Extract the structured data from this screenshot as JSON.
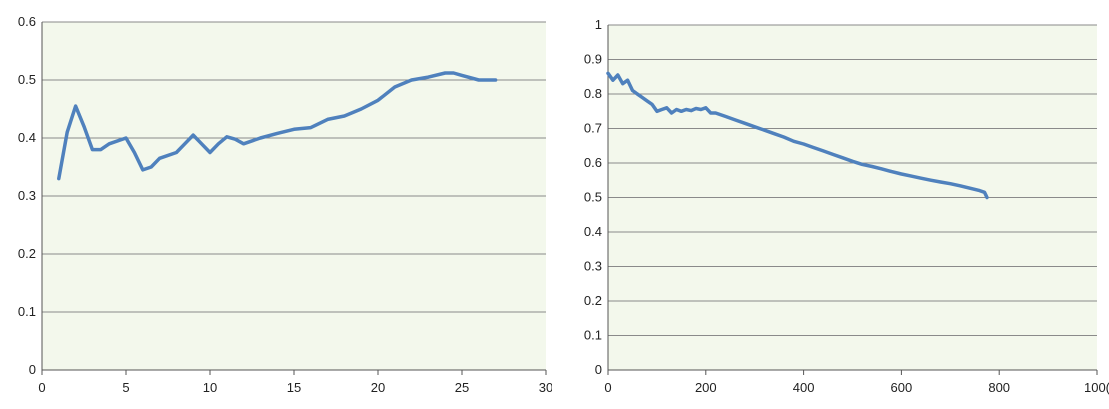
{
  "chart_data": [
    {
      "type": "line",
      "title": "",
      "xlabel": "",
      "ylabel": "",
      "xlim": [
        0,
        30
      ],
      "ylim": [
        0,
        0.6
      ],
      "grid": "horizontal",
      "legend": "none",
      "x_ticks": [
        "0",
        "5",
        "10",
        "15",
        "20",
        "25",
        "30"
      ],
      "y_ticks": [
        "0",
        "0.1",
        "0.2",
        "0.3",
        "0.4",
        "0.5",
        "0.6"
      ],
      "colors": {
        "line": "#4f81bd",
        "plot_bg": "#f3f8ec",
        "grid": "#8a8a8a"
      },
      "series": [
        {
          "x": [
            1,
            1.5,
            2,
            2.5,
            3,
            3.5,
            4,
            5,
            5.5,
            6,
            6.5,
            7,
            8,
            8.5,
            9,
            9.5,
            10,
            10.5,
            11,
            11.5,
            12,
            13,
            14,
            15,
            16,
            17,
            18,
            19,
            20,
            21,
            22,
            23,
            24,
            24.5,
            25,
            26,
            27
          ],
          "y": [
            0.33,
            0.41,
            0.455,
            0.42,
            0.38,
            0.38,
            0.39,
            0.4,
            0.375,
            0.345,
            0.35,
            0.365,
            0.375,
            0.39,
            0.405,
            0.39,
            0.375,
            0.39,
            0.402,
            0.398,
            0.39,
            0.4,
            0.408,
            0.415,
            0.418,
            0.432,
            0.438,
            0.45,
            0.465,
            0.488,
            0.5,
            0.505,
            0.512,
            0.512,
            0.508,
            0.5,
            0.5
          ]
        }
      ]
    },
    {
      "type": "line",
      "title": "",
      "xlabel": "",
      "ylabel": "",
      "xlim": [
        0,
        1000
      ],
      "ylim": [
        0,
        1
      ],
      "grid": "horizontal",
      "legend": "none",
      "x_ticks": [
        "0",
        "200",
        "400",
        "600",
        "800",
        "100("
      ],
      "y_ticks": [
        "0",
        "0.1",
        "0.2",
        "0.3",
        "0.4",
        "0.5",
        "0.6",
        "0.7",
        "0.8",
        "0.9",
        "1"
      ],
      "colors": {
        "line": "#4f81bd",
        "plot_bg": "#f3f8ec",
        "grid": "#8a8a8a"
      },
      "series": [
        {
          "x": [
            0,
            10,
            20,
            30,
            40,
            50,
            60,
            70,
            80,
            90,
            100,
            110,
            120,
            130,
            140,
            150,
            160,
            170,
            180,
            190,
            200,
            210,
            220,
            240,
            260,
            280,
            300,
            320,
            340,
            360,
            380,
            400,
            420,
            440,
            460,
            480,
            500,
            520,
            540,
            560,
            580,
            600,
            620,
            640,
            660,
            680,
            700,
            720,
            740,
            760,
            770,
            775
          ],
          "y": [
            0.86,
            0.84,
            0.855,
            0.83,
            0.84,
            0.81,
            0.8,
            0.79,
            0.78,
            0.77,
            0.75,
            0.755,
            0.76,
            0.745,
            0.755,
            0.75,
            0.755,
            0.752,
            0.758,
            0.755,
            0.76,
            0.745,
            0.745,
            0.735,
            0.725,
            0.715,
            0.705,
            0.695,
            0.685,
            0.675,
            0.663,
            0.655,
            0.645,
            0.635,
            0.625,
            0.615,
            0.605,
            0.596,
            0.59,
            0.583,
            0.575,
            0.568,
            0.562,
            0.556,
            0.55,
            0.545,
            0.54,
            0.534,
            0.527,
            0.52,
            0.515,
            0.5
          ]
        }
      ]
    }
  ]
}
